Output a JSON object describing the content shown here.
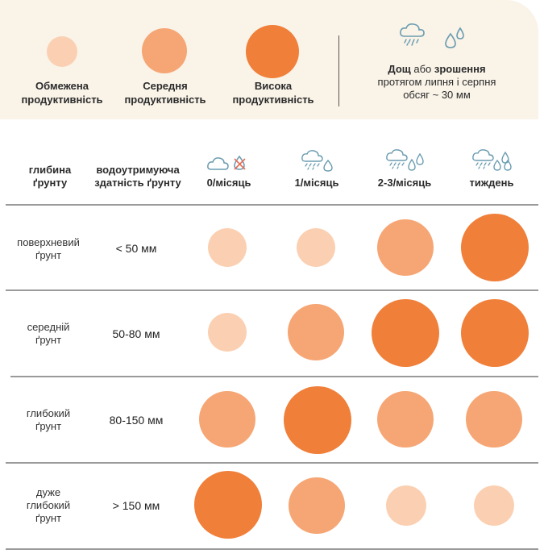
{
  "legend": {
    "items": [
      {
        "line1": "Обмежена",
        "line2": "продуктивність",
        "level": "low"
      },
      {
        "line1": "Середня",
        "line2": "продуктивність",
        "level": "medium"
      },
      {
        "line1": "Висока",
        "line2": "продуктивність",
        "level": "high"
      }
    ],
    "rain_title_bold1": "Дощ",
    "rain_title_mid": " або ",
    "rain_title_bold2": "зрошення",
    "rain_line2": "протягом липня і серпня",
    "rain_line3": "обсяг ~ 30 мм",
    "icons": [
      "rain-cloud-icon",
      "water-drops-icon"
    ]
  },
  "colors": {
    "low": "#fbd0b2",
    "medium": "#f6a674",
    "high": "#f07f3a",
    "background": "#f9f3e8",
    "icon": "#6a9cb0"
  },
  "header": {
    "depth_line1": "глибина",
    "depth_line2": "ґрунту",
    "capacity_line1": "водоутримуюча",
    "capacity_line2": "здатність ґрунту",
    "columns": [
      {
        "label": "0/місяць",
        "icon": "cloud-crossed-drop-icon"
      },
      {
        "label": "1/місяць",
        "icon": "rain-cloud-drop-icon"
      },
      {
        "label": "2-3/місяць",
        "icon": "rain-cloud-two-drops-icon"
      },
      {
        "label": "тиждень",
        "icon": "rain-cloud-three-drops-icon"
      }
    ]
  },
  "rows": [
    {
      "depth_line1": "поверхневий",
      "depth_line2": "ґрунт",
      "depth_line3": "",
      "capacity": "< 50 мм",
      "levels": [
        "low",
        "low",
        "medium",
        "high"
      ]
    },
    {
      "depth_line1": "середній",
      "depth_line2": "ґрунт",
      "depth_line3": "",
      "capacity": "50-80 мм",
      "levels": [
        "low",
        "medium",
        "high",
        "high"
      ]
    },
    {
      "depth_line1": "глибокий",
      "depth_line2": "ґрунт",
      "depth_line3": "",
      "capacity": "80-150 мм",
      "levels": [
        "medium",
        "high",
        "medium",
        "medium"
      ]
    },
    {
      "depth_line1": "дуже",
      "depth_line2": "глибокий",
      "depth_line3": "ґрунт",
      "capacity": "> 150 мм",
      "levels": [
        "high",
        "medium",
        "low",
        "low"
      ]
    }
  ]
}
